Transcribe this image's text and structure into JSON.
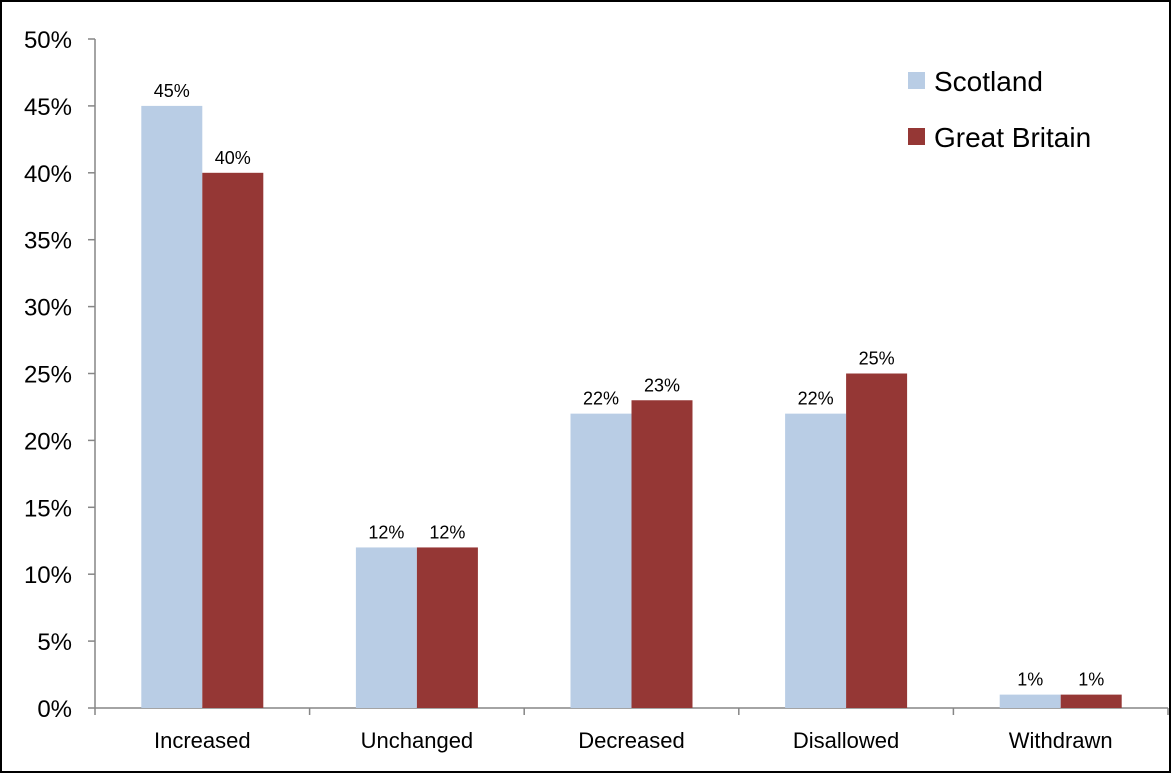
{
  "chart_data": {
    "type": "bar",
    "categories": [
      "Increased",
      "Unchanged",
      "Decreased",
      "Disallowed",
      "Withdrawn"
    ],
    "series": [
      {
        "name": "Scotland",
        "values": [
          45,
          12,
          22,
          22,
          1
        ],
        "color": "#b9cde5"
      },
      {
        "name": "Great Britain",
        "values": [
          40,
          12,
          23,
          25,
          1
        ],
        "color": "#953735"
      }
    ],
    "data_labels": [
      [
        "45%",
        "12%",
        "22%",
        "22%",
        "1%"
      ],
      [
        "40%",
        "12%",
        "23%",
        "25%",
        "1%"
      ]
    ],
    "yticks": [
      "0%",
      "5%",
      "10%",
      "15%",
      "20%",
      "25%",
      "30%",
      "35%",
      "40%",
      "45%",
      "50%"
    ],
    "ylim": [
      0,
      50
    ],
    "title": "",
    "xlabel": "",
    "ylabel": "",
    "grid": false,
    "legend_position": "top-right"
  }
}
